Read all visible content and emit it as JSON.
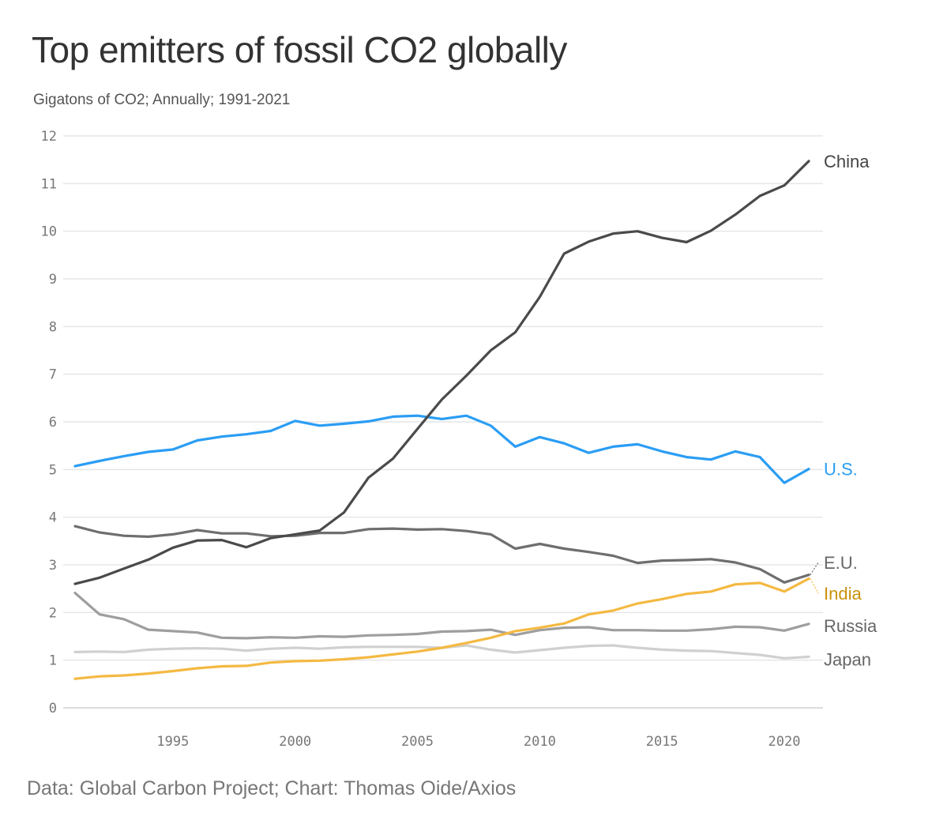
{
  "title": "Top emitters of fossil CO2 globally",
  "subtitle": "Gigatons of CO2; Annually; 1991-2021",
  "source": "Data: Global Carbon Project; Chart: Thomas Oide/Axios",
  "chart_data": {
    "type": "line",
    "ylim": [
      0,
      12
    ],
    "xlim": [
      1991,
      2021
    ],
    "yticks": [
      0,
      1,
      2,
      3,
      4,
      5,
      6,
      7,
      8,
      9,
      10,
      11,
      12
    ],
    "xticks": [
      1995,
      2000,
      2005,
      2010,
      2015,
      2020
    ],
    "grid": true,
    "legend": "direct labels at line ends (right)",
    "x": [
      1991,
      1992,
      1993,
      1994,
      1995,
      1996,
      1997,
      1998,
      1999,
      2000,
      2001,
      2002,
      2003,
      2004,
      2005,
      2006,
      2007,
      2008,
      2009,
      2010,
      2011,
      2012,
      2013,
      2014,
      2015,
      2016,
      2017,
      2018,
      2019,
      2020,
      2021
    ],
    "series": [
      {
        "name": "China",
        "color": "#4a4a4a",
        "label_color": "#444444",
        "values": [
          2.6,
          2.73,
          2.92,
          3.11,
          3.36,
          3.51,
          3.52,
          3.37,
          3.56,
          3.64,
          3.72,
          4.1,
          4.83,
          5.23,
          5.85,
          6.47,
          6.97,
          7.5,
          7.88,
          8.62,
          9.53,
          9.78,
          9.95,
          10.0,
          9.86,
          9.77,
          10.01,
          10.35,
          10.74,
          10.96,
          11.47
        ]
      },
      {
        "name": "U.S.",
        "color": "#2a9df4",
        "label_color": "#2a9df4",
        "values": [
          5.07,
          5.18,
          5.28,
          5.37,
          5.42,
          5.61,
          5.69,
          5.74,
          5.81,
          6.02,
          5.92,
          5.96,
          6.01,
          6.11,
          6.13,
          6.06,
          6.13,
          5.92,
          5.48,
          5.68,
          5.55,
          5.35,
          5.48,
          5.53,
          5.38,
          5.26,
          5.21,
          5.38,
          5.26,
          4.72,
          5.01
        ]
      },
      {
        "name": "E.U.",
        "color": "#6e6e6e",
        "label_color": "#666666",
        "values": [
          3.81,
          3.68,
          3.61,
          3.59,
          3.64,
          3.73,
          3.66,
          3.66,
          3.6,
          3.61,
          3.67,
          3.67,
          3.75,
          3.76,
          3.74,
          3.75,
          3.71,
          3.64,
          3.34,
          3.44,
          3.34,
          3.27,
          3.19,
          3.04,
          3.09,
          3.1,
          3.12,
          3.05,
          2.91,
          2.63,
          2.79
        ]
      },
      {
        "name": "India",
        "color": "#f4b942",
        "label_color": "#c9920c",
        "values": [
          0.61,
          0.66,
          0.68,
          0.72,
          0.77,
          0.83,
          0.87,
          0.88,
          0.95,
          0.98,
          0.99,
          1.02,
          1.06,
          1.12,
          1.18,
          1.26,
          1.36,
          1.47,
          1.61,
          1.68,
          1.77,
          1.96,
          2.04,
          2.19,
          2.28,
          2.39,
          2.44,
          2.59,
          2.62,
          2.44,
          2.71
        ]
      },
      {
        "name": "Russia",
        "color": "#9e9e9e",
        "label_color": "#666666",
        "values": [
          2.41,
          1.96,
          1.86,
          1.64,
          1.61,
          1.58,
          1.47,
          1.46,
          1.48,
          1.47,
          1.5,
          1.49,
          1.52,
          1.53,
          1.55,
          1.6,
          1.61,
          1.64,
          1.53,
          1.63,
          1.68,
          1.69,
          1.63,
          1.63,
          1.62,
          1.62,
          1.65,
          1.7,
          1.69,
          1.62,
          1.76
        ]
      },
      {
        "name": "Japan",
        "color": "#d0d0d0",
        "label_color": "#666666",
        "values": [
          1.17,
          1.18,
          1.17,
          1.22,
          1.24,
          1.25,
          1.24,
          1.2,
          1.24,
          1.26,
          1.24,
          1.27,
          1.28,
          1.28,
          1.28,
          1.26,
          1.31,
          1.22,
          1.16,
          1.21,
          1.26,
          1.3,
          1.31,
          1.26,
          1.22,
          1.2,
          1.19,
          1.15,
          1.11,
          1.04,
          1.07
        ]
      }
    ]
  }
}
